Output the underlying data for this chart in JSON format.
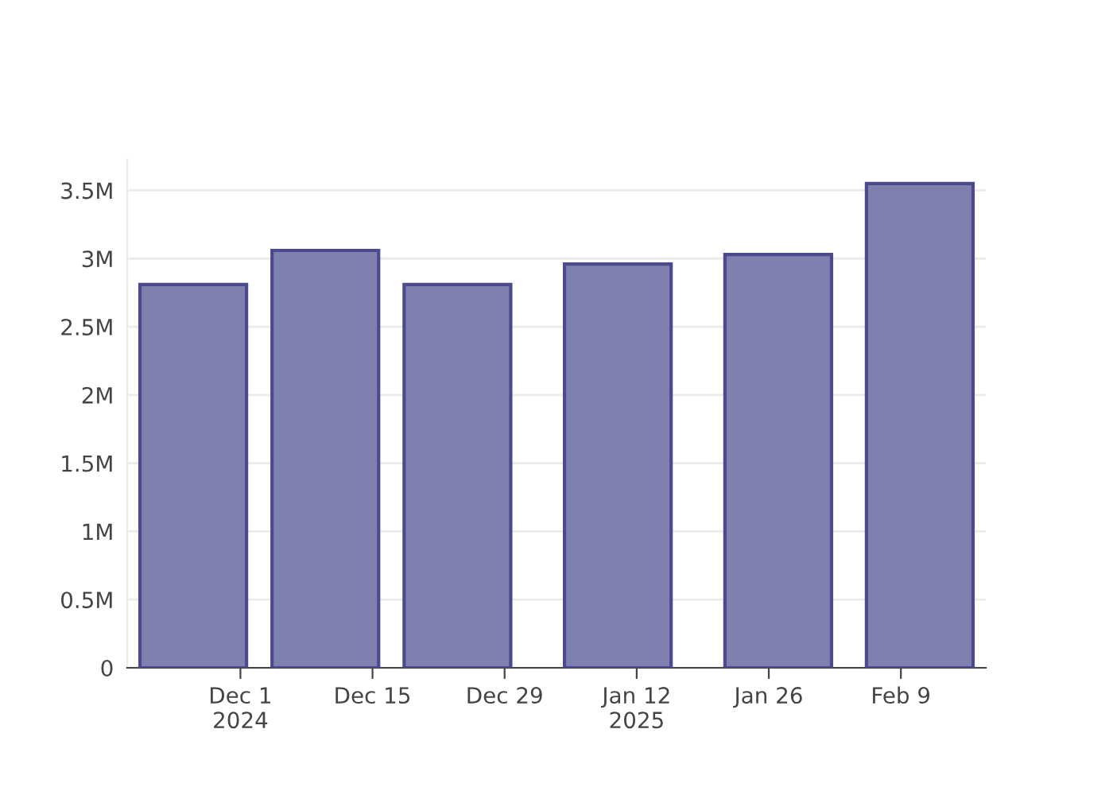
{
  "chart_data": {
    "type": "bar",
    "x": [
      "2024-11-26",
      "2024-12-10",
      "2024-12-24",
      "2025-01-10",
      "2025-01-27",
      "2025-02-11"
    ],
    "values": [
      2810000,
      3060000,
      2810000,
      2960000,
      3030000,
      3550000
    ],
    "color": "#7f7fb0",
    "xlim": [
      "2024-11-19",
      "2025-02-18"
    ],
    "xticks": [
      {
        "value": "2024-12-01",
        "label": "Dec 1\n2024"
      },
      {
        "value": "2024-12-15",
        "label": "Dec 15"
      },
      {
        "value": "2024-12-29",
        "label": "Dec 29"
      },
      {
        "value": "2025-01-12",
        "label": "Jan 12\n2025"
      },
      {
        "value": "2025-01-26",
        "label": "Jan 26"
      },
      {
        "value": "2025-02-09",
        "label": "Feb 9"
      }
    ],
    "ylim": [
      0,
      3730000
    ],
    "yticks": [
      0,
      {
        "value": 500000,
        "label": "0.5M"
      },
      {
        "value": 1000000,
        "label": "1M"
      },
      {
        "value": 1500000,
        "label": "1.5M"
      },
      {
        "value": 2000000,
        "label": "2M"
      },
      {
        "value": 2500000,
        "label": "2.5M"
      },
      {
        "value": 3000000,
        "label": "3M"
      },
      {
        "value": 3500000,
        "label": "3.5M"
      }
    ],
    "grid": "y"
  }
}
